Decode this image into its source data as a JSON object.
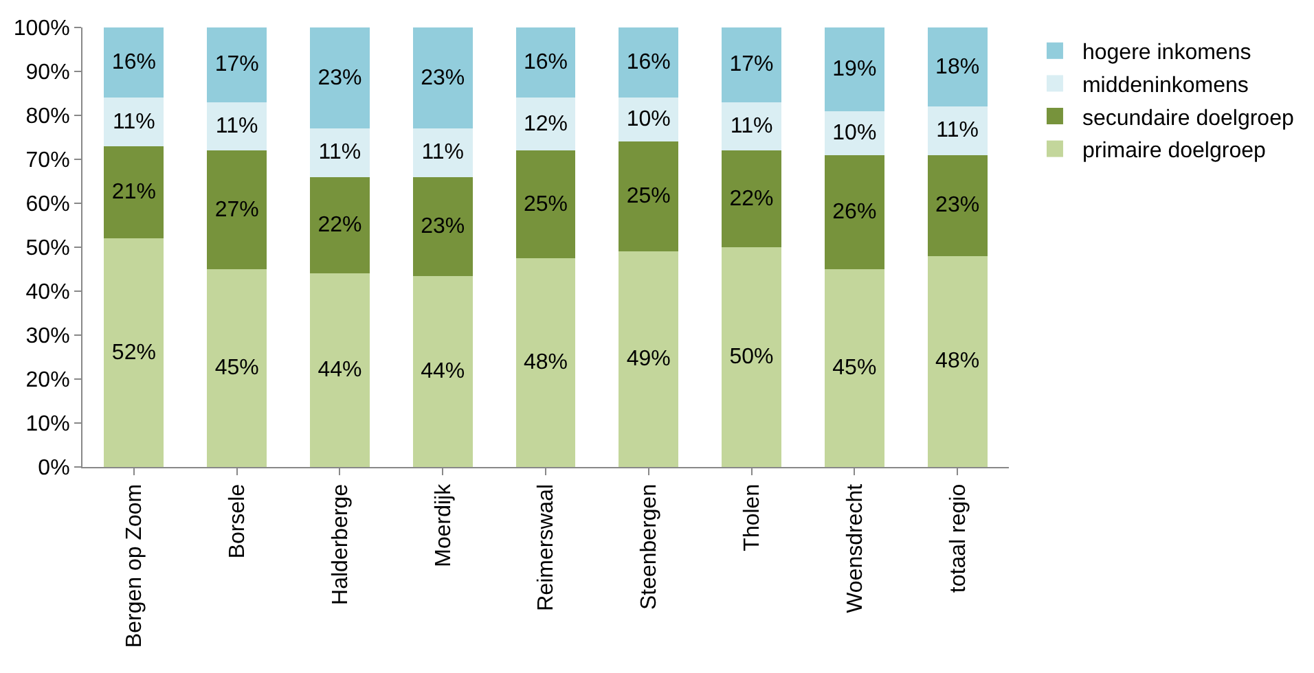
{
  "chart_data": {
    "type": "bar",
    "stacked": true,
    "categories": [
      "Bergen op Zoom",
      "Borsele",
      "Halderberge",
      "Moerdijk",
      "Reimerswaal",
      "Steenbergen",
      "Tholen",
      "Woensdrecht",
      "totaal regio"
    ],
    "series": [
      {
        "name": "primaire doelgroep",
        "color": "#c3d69b",
        "values": [
          52,
          45,
          44,
          43.5,
          47.5,
          49,
          50,
          45,
          48
        ],
        "value_labels": [
          "52%",
          "45%",
          "44%",
          "44%",
          "48%",
          "49%",
          "50%",
          "45%",
          "48%"
        ]
      },
      {
        "name": "secundaire doelgroep",
        "color": "#77933c",
        "values": [
          21,
          27,
          22,
          22.5,
          24.5,
          25,
          22,
          26,
          23
        ],
        "value_labels": [
          "21%",
          "27%",
          "22%",
          "23%",
          "25%",
          "25%",
          "22%",
          "26%",
          "23%"
        ]
      },
      {
        "name": "middeninkomens",
        "color": "#daeef3",
        "values": [
          11,
          11,
          11,
          11,
          12,
          10,
          11,
          10,
          11
        ],
        "value_labels": [
          "11%",
          "11%",
          "11%",
          "11%",
          "12%",
          "10%",
          "11%",
          "10%",
          "11%"
        ]
      },
      {
        "name": "hogere inkomens",
        "color": "#92cddc",
        "values": [
          16,
          17,
          23,
          23,
          16,
          16,
          17,
          19,
          18
        ],
        "value_labels": [
          "16%",
          "17%",
          "23%",
          "23%",
          "16%",
          "16%",
          "17%",
          "19%",
          "18%"
        ]
      }
    ],
    "ylim": [
      0,
      100
    ],
    "yticks": [
      {
        "value": 0,
        "label": "0%"
      },
      {
        "value": 10,
        "label": "10%"
      },
      {
        "value": 20,
        "label": "20%"
      },
      {
        "value": 30,
        "label": "30%"
      },
      {
        "value": 40,
        "label": "40%"
      },
      {
        "value": 50,
        "label": "50%"
      },
      {
        "value": 60,
        "label": "60%"
      },
      {
        "value": 70,
        "label": "70%"
      },
      {
        "value": 80,
        "label": "80%"
      },
      {
        "value": 90,
        "label": "90%"
      },
      {
        "value": 100,
        "label": "100%"
      }
    ],
    "legend": "right"
  }
}
